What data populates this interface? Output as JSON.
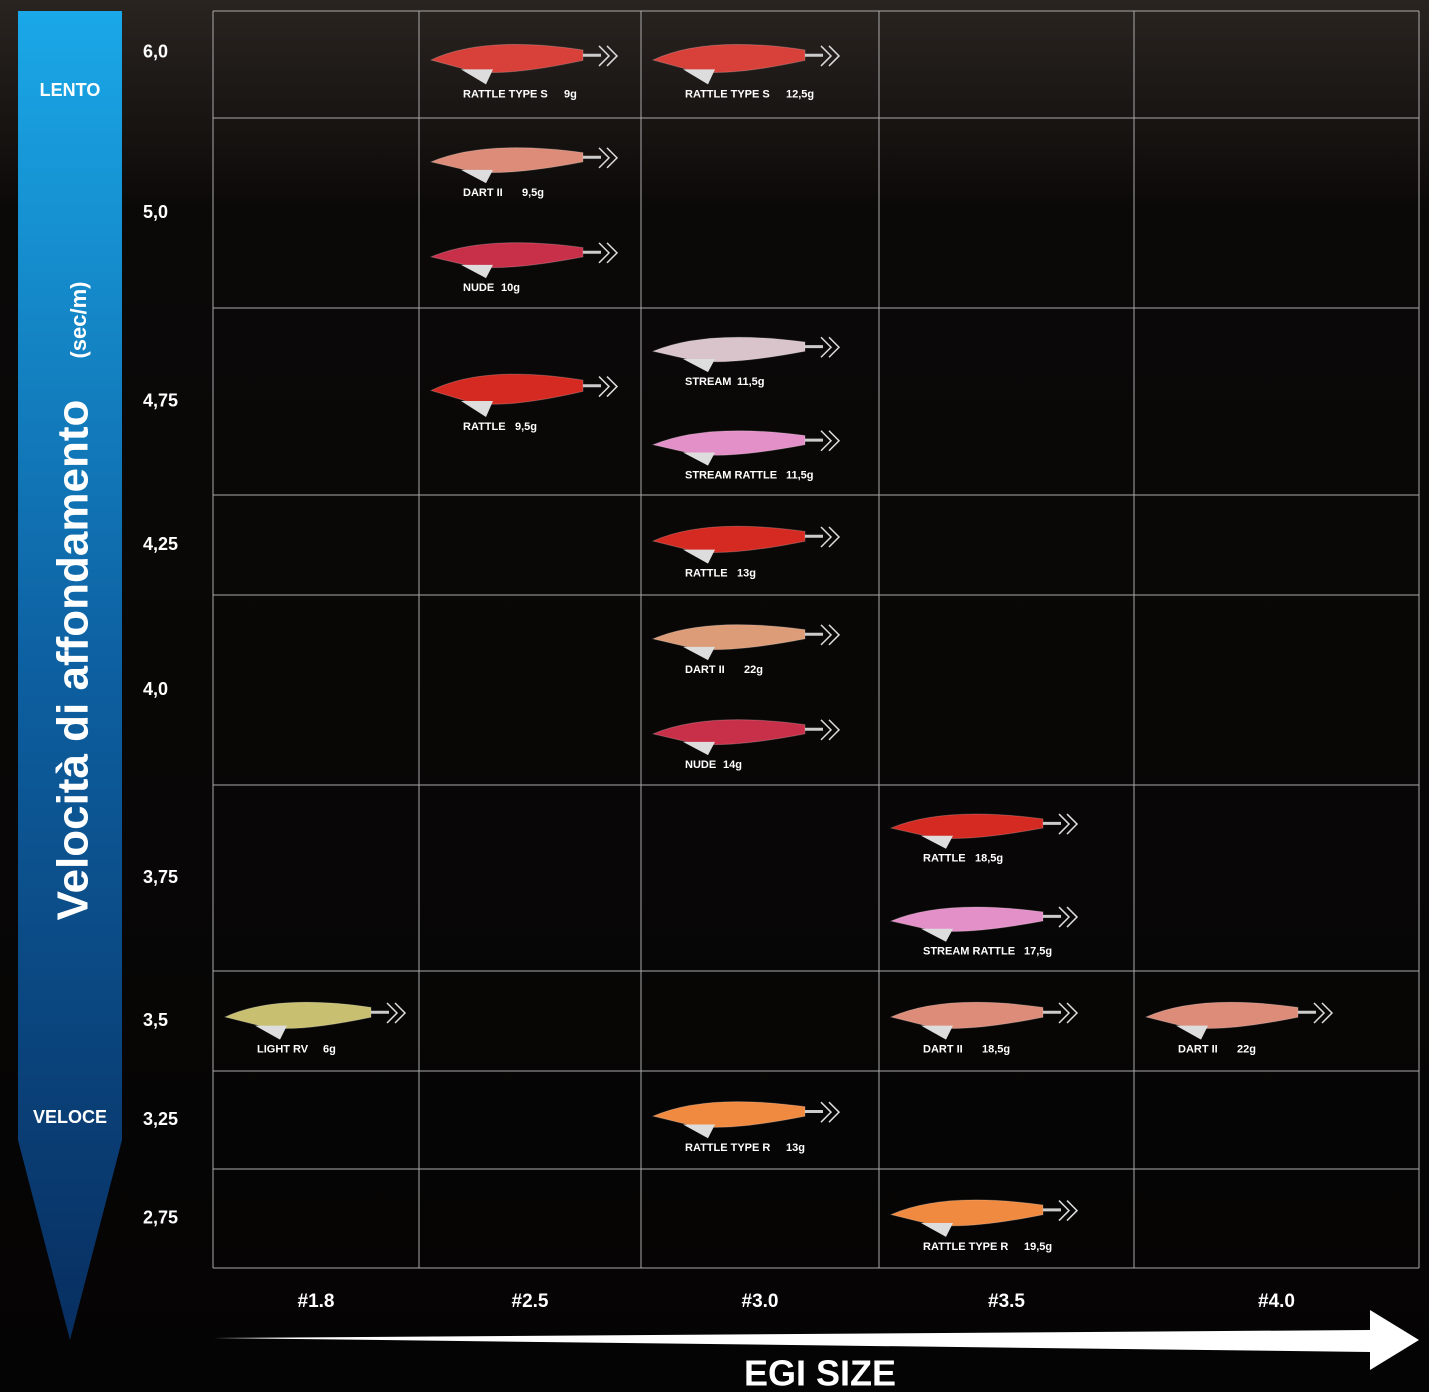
{
  "axis": {
    "title": "Velocità di affondamento",
    "unit": "(sec/m)",
    "top": "LENTO",
    "bottom": "VELOCE",
    "x_title": "EGI SIZE"
  },
  "columns": [
    "#1.8",
    "#2.5",
    "#3.0",
    "#3.5",
    "#4.0"
  ],
  "rows": [
    {
      "label": "6,0",
      "cells": [
        [],
        [
          {
            "name": "RATTLE TYPE S",
            "weight": "9g",
            "color": "#d8403a"
          }
        ],
        [
          {
            "name": "RATTLE TYPE S",
            "weight": "12,5g",
            "color": "#d8403a"
          }
        ],
        [],
        []
      ]
    },
    {
      "label": "5,0",
      "cells": [
        [],
        [
          {
            "name": "DART II",
            "weight": "9,5g",
            "color": "#dc8c78"
          },
          {
            "name": "NUDE",
            "weight": "10g",
            "color": "#c8304a"
          }
        ],
        [],
        [],
        []
      ]
    },
    {
      "label": "4,75",
      "cells": [
        [],
        [
          {
            "name": "RATTLE",
            "weight": "9,5g",
            "color": "#d42a22"
          }
        ],
        [
          {
            "name": "STREAM",
            "weight": "11,5g",
            "color": "#d9c4cc"
          },
          {
            "name": "STREAM RATTLE",
            "weight": "11,5g",
            "color": "#e490c8"
          }
        ],
        [],
        []
      ]
    },
    {
      "label": "4,25",
      "cells": [
        [],
        [],
        [
          {
            "name": "RATTLE",
            "weight": "13g",
            "color": "#d42a22"
          }
        ],
        [],
        []
      ]
    },
    {
      "label": "4,0",
      "cells": [
        [],
        [],
        [
          {
            "name": "DART II",
            "weight": "22g",
            "color": "#dc9c78"
          },
          {
            "name": "NUDE",
            "weight": "14g",
            "color": "#c8304a"
          }
        ],
        [],
        []
      ]
    },
    {
      "label": "3,75",
      "cells": [
        [],
        [],
        [],
        [
          {
            "name": "RATTLE",
            "weight": "18,5g",
            "color": "#d42a22"
          },
          {
            "name": "STREAM RATTLE",
            "weight": "17,5g",
            "color": "#e490c8"
          }
        ],
        []
      ]
    },
    {
      "label": "3,5",
      "cells": [
        [
          {
            "name": "LIGHT RV",
            "weight": "6g",
            "color": "#c8c070"
          }
        ],
        [],
        [],
        [
          {
            "name": "DART II",
            "weight": "18,5g",
            "color": "#dc8c78"
          }
        ],
        [
          {
            "name": "DART II",
            "weight": "22g",
            "color": "#dc8c78"
          }
        ]
      ]
    },
    {
      "label": "3,25",
      "cells": [
        [],
        [],
        [
          {
            "name": "RATTLE TYPE R",
            "weight": "13g",
            "color": "#f08a40"
          }
        ],
        [],
        []
      ]
    },
    {
      "label": "2,75",
      "cells": [
        [],
        [],
        [],
        [
          {
            "name": "RATTLE TYPE R",
            "weight": "19,5g",
            "color": "#f08a40"
          }
        ],
        []
      ]
    }
  ]
}
